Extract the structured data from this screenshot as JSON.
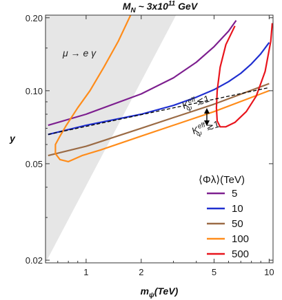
{
  "chart_data": {
    "type": "line",
    "title": "M_N ~ 3x10^11 GeV",
    "xlabel": "m_ψ(TeV)",
    "ylabel": "y",
    "xscale": "log",
    "yscale": "log",
    "xlim": [
      0.6,
      10.5
    ],
    "ylim": [
      0.0195,
      0.205
    ],
    "xticks": [
      {
        "v": 1,
        "label": "1"
      },
      {
        "v": 2,
        "label": "2"
      },
      {
        "v": 5,
        "label": "5"
      },
      {
        "v": 10,
        "label": "10"
      }
    ],
    "yticks": [
      {
        "v": 0.02,
        "label": "0.02"
      },
      {
        "v": 0.05,
        "label": "0.05"
      },
      {
        "v": 0.1,
        "label": "0.10"
      },
      {
        "v": 0.2,
        "label": "0.20"
      }
    ],
    "legend": {
      "title": "⟨Φλ⟩(TeV)",
      "placement": "bottom-right"
    },
    "shaded_region": {
      "label": "μ → e γ",
      "color": "#e6e6e6",
      "points": [
        [
          0.6,
          0.205
        ],
        [
          3.1,
          0.205
        ],
        [
          0.6,
          0.0195
        ]
      ]
    },
    "series": [
      {
        "name": "5",
        "color": "#7d1f8f",
        "x": [
          0.62,
          1,
          2,
          3,
          4,
          5,
          6,
          6.6
        ],
        "y": [
          0.072,
          0.08,
          0.097,
          0.113,
          0.131,
          0.152,
          0.176,
          0.195
        ]
      },
      {
        "name": "10",
        "color": "#1f2fd0",
        "x": [
          0.62,
          1,
          2,
          3,
          4,
          5,
          6,
          7,
          8,
          9,
          10
        ],
        "y": [
          0.066,
          0.072,
          0.08,
          0.087,
          0.094,
          0.101,
          0.109,
          0.118,
          0.129,
          0.142,
          0.158
        ]
      },
      {
        "name": "50",
        "color": "#9b6b45",
        "x": [
          0.62,
          1,
          2,
          5,
          10
        ],
        "y": [
          0.054,
          0.059,
          0.07,
          0.088,
          0.107
        ]
      },
      {
        "name": "100",
        "color": "#ff8c1a",
        "x": [
          1.75,
          1.5,
          1.25,
          1.05,
          0.9,
          0.78,
          0.72,
          0.68,
          0.68,
          0.72,
          0.8,
          0.95,
          1.2,
          2,
          5,
          10
        ],
        "y": [
          0.205,
          0.16,
          0.125,
          0.1,
          0.085,
          0.072,
          0.065,
          0.06,
          0.055,
          0.052,
          0.051,
          0.054,
          0.057,
          0.065,
          0.082,
          0.1
        ]
      },
      {
        "name": "500",
        "color": "#e8141c",
        "x": [
          6.5,
          5.8,
          5.4,
          5.2,
          5.15,
          5.2,
          5.4,
          5.8,
          6.5,
          7.5,
          8.5,
          9.5,
          10.2,
          10.4
        ],
        "y": [
          0.185,
          0.155,
          0.125,
          0.1,
          0.085,
          0.075,
          0.071,
          0.071,
          0.074,
          0.082,
          0.095,
          0.12,
          0.16,
          0.19
        ]
      },
      {
        "name": "",
        "color": "#000000",
        "dashed": true,
        "x": [
          0.62,
          10
        ],
        "y": [
          0.066,
          0.103
        ]
      }
    ],
    "annotations": [
      {
        "main": "K",
        "sup": "eff",
        "sub": "Ψ",
        "rel": "≲1",
        "x": 3.4,
        "y": 0.084,
        "rotate": -16
      },
      {
        "main": "K",
        "sup": "eff",
        "sub": "Ψ",
        "rel": "≳1",
        "x": 3.85,
        "y": 0.066,
        "rotate": -16
      }
    ]
  }
}
